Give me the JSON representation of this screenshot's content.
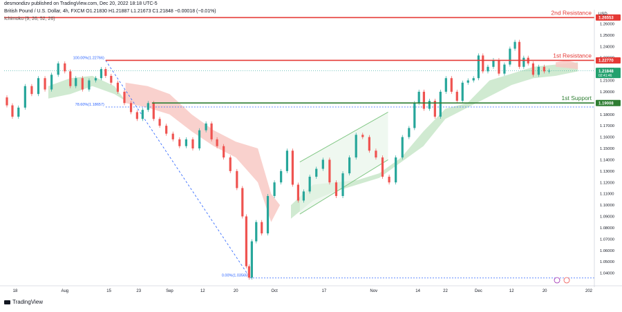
{
  "header": {
    "user": "desmondizv published on TradingView.com, Dec 20, 2022 18:18 UTC-5",
    "symbol": "British Pound / U.S. Dollar, 4h, FXCM O1.21830 H1.21887 L1.21673 C1.21848 −0.00018 (−0.01%)",
    "indicator": "Ichimoku (9, 26, 52, 26)"
  },
  "currency": "USD",
  "brand": "TradingView",
  "chart_data": {
    "type": "candlestick",
    "y_axis": {
      "ylim": [
        1.03,
        1.27
      ],
      "ticks": [
        "1.26000",
        "1.25000",
        "1.24000",
        "1.23000",
        "1.22000",
        "1.21000",
        "1.20000",
        "1.19000",
        "1.18000",
        "1.17000",
        "1.16000",
        "1.15000",
        "1.14000",
        "1.13000",
        "1.12000",
        "1.11000",
        "1.10000",
        "1.09000",
        "1.08000",
        "1.07000",
        "1.06000",
        "1.05000",
        "1.04000"
      ]
    },
    "x_axis": {
      "labels": [
        {
          "x": 1.0,
          "label": "18"
        },
        {
          "x": 5.5,
          "label": "Aug"
        },
        {
          "x": 9.5,
          "label": "15"
        },
        {
          "x": 12.2,
          "label": "23"
        },
        {
          "x": 15.0,
          "label": "Sep"
        },
        {
          "x": 18.0,
          "label": "12"
        },
        {
          "x": 21.0,
          "label": "20"
        },
        {
          "x": 24.5,
          "label": "Oct"
        },
        {
          "x": 29.0,
          "label": "17"
        },
        {
          "x": 33.5,
          "label": "Nov"
        },
        {
          "x": 37.5,
          "label": "14"
        },
        {
          "x": 40.0,
          "label": "22"
        },
        {
          "x": 43.0,
          "label": "Dec"
        },
        {
          "x": 46.0,
          "label": "12"
        },
        {
          "x": 49.0,
          "label": "20"
        },
        {
          "x": 53.0,
          "label": "202"
        }
      ],
      "xlim": [
        0,
        53.5
      ]
    },
    "price_path": [
      [
        0,
        1.195
      ],
      [
        0.5,
        1.188
      ],
      [
        1,
        1.178
      ],
      [
        1.6,
        1.186
      ],
      [
        2.2,
        1.205
      ],
      [
        2.8,
        1.198
      ],
      [
        3.4,
        1.212
      ],
      [
        4,
        1.202
      ],
      [
        4.6,
        1.215
      ],
      [
        5.2,
        1.225
      ],
      [
        5.8,
        1.218
      ],
      [
        6.2,
        1.205
      ],
      [
        6.8,
        1.212
      ],
      [
        7.4,
        1.202
      ],
      [
        8,
        1.21
      ],
      [
        8.6,
        1.212
      ],
      [
        9,
        1.22
      ],
      [
        9.4,
        1.214
      ],
      [
        10,
        1.208
      ],
      [
        10.6,
        1.2
      ],
      [
        11.2,
        1.19
      ],
      [
        11.8,
        1.182
      ],
      [
        12.3,
        1.176
      ],
      [
        12.8,
        1.184
      ],
      [
        13.3,
        1.19
      ],
      [
        13.8,
        1.176
      ],
      [
        14.4,
        1.17
      ],
      [
        15,
        1.163
      ],
      [
        15.6,
        1.158
      ],
      [
        16.2,
        1.152
      ],
      [
        16.8,
        1.158
      ],
      [
        17.4,
        1.15
      ],
      [
        18,
        1.166
      ],
      [
        18.6,
        1.172
      ],
      [
        19,
        1.158
      ],
      [
        19.6,
        1.152
      ],
      [
        20.2,
        1.142
      ],
      [
        20.8,
        1.13
      ],
      [
        21.4,
        1.115
      ],
      [
        21.8,
        1.09
      ],
      [
        22.1,
        1.046
      ],
      [
        22.3,
        1.036
      ],
      [
        22.6,
        1.068
      ],
      [
        23.1,
        1.085
      ],
      [
        23.6,
        1.075
      ],
      [
        24.2,
        1.108
      ],
      [
        24.8,
        1.12
      ],
      [
        25.4,
        1.13
      ],
      [
        25.9,
        1.148
      ],
      [
        26.4,
        1.118
      ],
      [
        26.9,
        1.104
      ],
      [
        27.4,
        1.112
      ],
      [
        28,
        1.125
      ],
      [
        28.6,
        1.132
      ],
      [
        29.2,
        1.14
      ],
      [
        29.8,
        1.12
      ],
      [
        30.4,
        1.108
      ],
      [
        31,
        1.128
      ],
      [
        31.6,
        1.142
      ],
      [
        32.2,
        1.162
      ],
      [
        32.8,
        1.16
      ],
      [
        33.4,
        1.148
      ],
      [
        34,
        1.142
      ],
      [
        34.6,
        1.125
      ],
      [
        35.2,
        1.12
      ],
      [
        35.8,
        1.142
      ],
      [
        36.4,
        1.16
      ],
      [
        37,
        1.168
      ],
      [
        37.4,
        1.19
      ],
      [
        37.8,
        1.2
      ],
      [
        38.3,
        1.185
      ],
      [
        38.8,
        1.192
      ],
      [
        39.3,
        1.178
      ],
      [
        39.8,
        1.2
      ],
      [
        40.3,
        1.212
      ],
      [
        40.8,
        1.2
      ],
      [
        41.3,
        1.192
      ],
      [
        41.8,
        1.208
      ],
      [
        42.3,
        1.21
      ],
      [
        42.8,
        1.212
      ],
      [
        43.2,
        1.232
      ],
      [
        43.6,
        1.218
      ],
      [
        44.1,
        1.222
      ],
      [
        44.6,
        1.228
      ],
      [
        45.1,
        1.216
      ],
      [
        45.6,
        1.224
      ],
      [
        46.1,
        1.238
      ],
      [
        46.5,
        1.244
      ],
      [
        46.9,
        1.222
      ],
      [
        47.3,
        1.23
      ],
      [
        47.7,
        1.225
      ],
      [
        48.2,
        1.215
      ],
      [
        48.7,
        1.222
      ],
      [
        49.2,
        1.218
      ],
      [
        49.6,
        1.2185
      ]
    ],
    "ichimoku_cloud": [
      {
        "name": "Bullish cloud",
        "color": "#c8e6c9",
        "upper": [
          [
            4,
            1.205
          ],
          [
            6,
            1.212
          ],
          [
            8,
            1.214
          ],
          [
            10,
            1.205
          ],
          [
            11,
            1.192
          ]
        ],
        "lower": [
          [
            11,
            1.192
          ],
          [
            10,
            1.198
          ],
          [
            8,
            1.205
          ],
          [
            6,
            1.198
          ],
          [
            4,
            1.194
          ]
        ]
      },
      {
        "name": "Bearish cloud",
        "color": "#f8c9c4",
        "upper": [
          [
            11,
            1.208
          ],
          [
            13,
            1.205
          ],
          [
            15,
            1.198
          ],
          [
            17,
            1.18
          ],
          [
            19,
            1.166
          ],
          [
            21,
            1.156
          ],
          [
            23,
            1.15
          ],
          [
            24.2,
            1.11
          ],
          [
            25,
            1.1
          ]
        ],
        "lower": [
          [
            25,
            1.1
          ],
          [
            24.2,
            1.085
          ],
          [
            23,
            1.12
          ],
          [
            21,
            1.142
          ],
          [
            19,
            1.152
          ],
          [
            17,
            1.165
          ],
          [
            15,
            1.18
          ],
          [
            13,
            1.186
          ],
          [
            11,
            1.19
          ]
        ]
      },
      {
        "name": "Bullish cloud 2",
        "color": "#c8e6c9",
        "upper": [
          [
            26,
            1.1
          ],
          [
            28,
            1.118
          ],
          [
            30,
            1.12
          ],
          [
            32,
            1.122
          ],
          [
            34,
            1.128
          ],
          [
            36,
            1.142
          ],
          [
            38,
            1.165
          ],
          [
            40,
            1.185
          ],
          [
            42,
            1.19
          ],
          [
            44,
            1.21
          ],
          [
            46,
            1.216
          ],
          [
            48,
            1.222
          ],
          [
            50,
            1.224
          ],
          [
            52,
            1.226
          ]
        ],
        "lower": [
          [
            52,
            1.218
          ],
          [
            50,
            1.214
          ],
          [
            48,
            1.212
          ],
          [
            46,
            1.206
          ],
          [
            44,
            1.196
          ],
          [
            42,
            1.186
          ],
          [
            40,
            1.176
          ],
          [
            38,
            1.152
          ],
          [
            36,
            1.138
          ],
          [
            34,
            1.124
          ],
          [
            32,
            1.118
          ],
          [
            30,
            1.112
          ],
          [
            28,
            1.104
          ],
          [
            26,
            1.088
          ]
        ]
      },
      {
        "name": "Bearish cloud 2",
        "color": "#f8c9c4",
        "upper": [
          [
            50,
            1.226
          ],
          [
            51,
            1.228
          ],
          [
            52,
            1.225
          ]
        ],
        "lower": [
          [
            52,
            1.22
          ],
          [
            51,
            1.221
          ],
          [
            50,
            1.222
          ]
        ]
      }
    ],
    "fibonacci": [
      {
        "label": "100.00%(1.22766)",
        "value": 1.22766,
        "x_start": 9.2
      },
      {
        "label": "78.60%(1.18657)",
        "value": 1.18657,
        "x_start": 9.2
      },
      {
        "label": "0.00%(1.03565)",
        "value": 1.03565,
        "x_start": 22.3
      }
    ],
    "fib_trendline": {
      "from": [
        9.2,
        1.22766
      ],
      "to": [
        22.3,
        1.03565
      ]
    },
    "horizontal_lines": [
      {
        "name": "2nd Resistance",
        "value": 1.2655,
        "color": "#e53935",
        "x_start": 0
      },
      {
        "name": "1st Resistance",
        "value": 1.2277,
        "color": "#e53935",
        "x_start": 9.2
      },
      {
        "name": "1st Support",
        "value": 1.19008,
        "color": "#2e7d32",
        "x_start": 13.4
      }
    ],
    "price_label_badges": [
      {
        "value": 1.2655,
        "label": "1.26553",
        "color": "#e53935"
      },
      {
        "value": 1.2277,
        "label": "1.22770",
        "color": "#e53935"
      },
      {
        "value": 1.21848,
        "label": "1.21848",
        "color": "#22a16e",
        "sub": "02:41:46"
      },
      {
        "value": 1.19008,
        "label": "1.19008",
        "color": "#2e7d32"
      }
    ],
    "current_price": 1.21848,
    "channel": {
      "lower": [
        [
          26.8,
          1.092
        ],
        [
          34.8,
          1.14
        ]
      ],
      "upper": [
        [
          26.8,
          1.138
        ],
        [
          34.8,
          1.182
        ]
      ],
      "color": "#81c784",
      "fill": "#e8f5e9"
    }
  }
}
